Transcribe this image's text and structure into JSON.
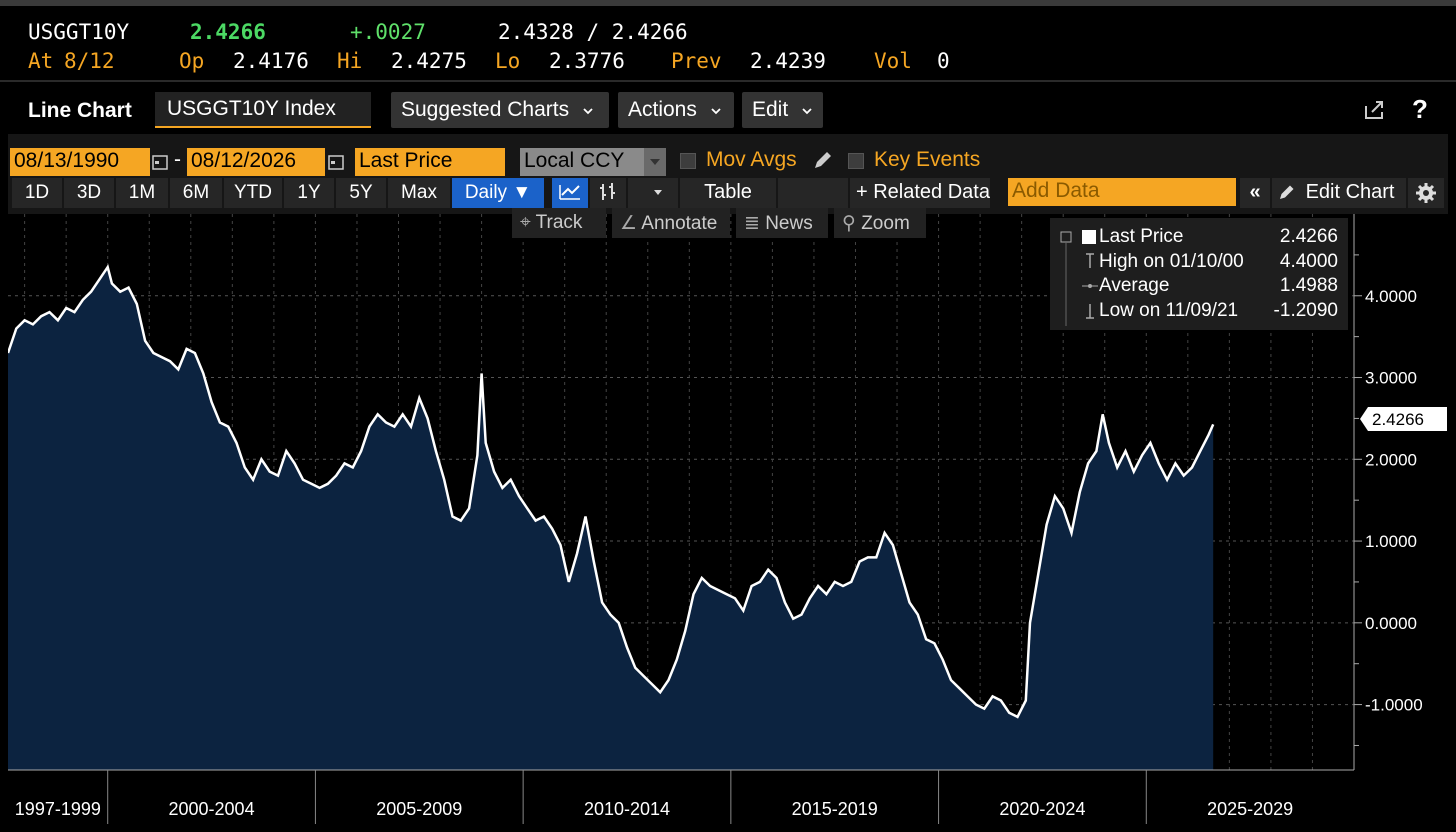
{
  "quote": {
    "ticker": "USGGT10Y",
    "last": "2.4266",
    "change": "+.0027",
    "bid_ask": "2.4328 / 2.4266",
    "at_label": "At",
    "at_date": "8/12",
    "open_label": "Op",
    "open": "2.4176",
    "high_label": "Hi",
    "high": "2.4275",
    "low_label": "Lo",
    "low": "2.3776",
    "prev_label": "Prev",
    "prev": "2.4239",
    "vol_label": "Vol",
    "vol": "0"
  },
  "toolbar": {
    "chart_type": "Line Chart",
    "security": "USGGT10Y Index",
    "suggested": "Suggested Charts",
    "actions": "Actions",
    "edit": "Edit",
    "export_icon": "export-icon",
    "help": "?"
  },
  "controls": {
    "start_date": "08/13/1990",
    "dash": "-",
    "end_date": "08/12/2026",
    "field": "Last Price",
    "currency": "Local CCY",
    "mov_avgs": "Mov Avgs",
    "key_events": "Key Events",
    "ranges": [
      "1D",
      "3D",
      "1M",
      "6M",
      "YTD",
      "1Y",
      "5Y",
      "Max"
    ],
    "frequency": "Daily ▼",
    "table": "Table",
    "related": "+ Related Data",
    "add_data": "Add Data",
    "collapse": "«",
    "edit_chart": "Edit Chart"
  },
  "chart_tools": {
    "track": "Track",
    "annotate": "Annotate",
    "news": "News",
    "zoom": "Zoom"
  },
  "legend": {
    "last_label": "Last Price",
    "last_value": "2.4266",
    "high_label": "High on 01/10/00",
    "high_value": "4.4000",
    "avg_label": "Average",
    "avg_value": "1.4988",
    "low_label": "Low on 11/09/21",
    "low_value": "-1.2090"
  },
  "last_tag": "2.4266",
  "colors": {
    "accent_orange": "#f5a623",
    "area_fill": "#0c2340",
    "line": "#ffffff",
    "active_blue": "#1b62c9",
    "change_green": "#4cd964"
  },
  "chart_data": {
    "type": "area",
    "series_name": "Last Price",
    "ylim": [
      -1.8,
      5.0
    ],
    "yticks": [
      "4.0000",
      "3.0000",
      "2.0000",
      "1.0000",
      "0.0000",
      "-1.0000"
    ],
    "ytick_values": [
      4,
      3,
      2,
      1,
      0,
      -1
    ],
    "x_periods": [
      "1997-1999",
      "2000-2004",
      "2005-2009",
      "2010-2014",
      "2015-2019",
      "2020-2024",
      "2025-2029"
    ],
    "x_period_starts": [
      1997,
      2000,
      2005,
      2010,
      2015,
      2020,
      2025
    ],
    "xlim": [
      1997.6,
      2030
    ],
    "grid": true,
    "legend_position": "top-right",
    "points": [
      [
        1997.6,
        3.3
      ],
      [
        1997.8,
        3.6
      ],
      [
        1998.0,
        3.7
      ],
      [
        1998.2,
        3.65
      ],
      [
        1998.4,
        3.75
      ],
      [
        1998.6,
        3.8
      ],
      [
        1998.8,
        3.7
      ],
      [
        1999.0,
        3.85
      ],
      [
        1999.2,
        3.8
      ],
      [
        1999.4,
        3.95
      ],
      [
        1999.6,
        4.05
      ],
      [
        1999.8,
        4.2
      ],
      [
        2000.0,
        4.35
      ],
      [
        2000.1,
        4.15
      ],
      [
        2000.3,
        4.05
      ],
      [
        2000.5,
        4.1
      ],
      [
        2000.7,
        3.9
      ],
      [
        2000.9,
        3.45
      ],
      [
        2001.1,
        3.3
      ],
      [
        2001.3,
        3.25
      ],
      [
        2001.5,
        3.2
      ],
      [
        2001.7,
        3.1
      ],
      [
        2001.9,
        3.35
      ],
      [
        2002.1,
        3.3
      ],
      [
        2002.3,
        3.05
      ],
      [
        2002.5,
        2.7
      ],
      [
        2002.7,
        2.45
      ],
      [
        2002.9,
        2.4
      ],
      [
        2003.1,
        2.2
      ],
      [
        2003.3,
        1.9
      ],
      [
        2003.5,
        1.75
      ],
      [
        2003.7,
        2.0
      ],
      [
        2003.9,
        1.85
      ],
      [
        2004.1,
        1.8
      ],
      [
        2004.3,
        2.1
      ],
      [
        2004.5,
        1.95
      ],
      [
        2004.7,
        1.75
      ],
      [
        2004.9,
        1.7
      ],
      [
        2005.1,
        1.65
      ],
      [
        2005.3,
        1.7
      ],
      [
        2005.5,
        1.8
      ],
      [
        2005.7,
        1.95
      ],
      [
        2005.9,
        1.9
      ],
      [
        2006.1,
        2.1
      ],
      [
        2006.3,
        2.4
      ],
      [
        2006.5,
        2.55
      ],
      [
        2006.7,
        2.45
      ],
      [
        2006.9,
        2.4
      ],
      [
        2007.1,
        2.55
      ],
      [
        2007.3,
        2.4
      ],
      [
        2007.5,
        2.75
      ],
      [
        2007.7,
        2.5
      ],
      [
        2007.9,
        2.1
      ],
      [
        2008.1,
        1.75
      ],
      [
        2008.3,
        1.3
      ],
      [
        2008.5,
        1.25
      ],
      [
        2008.7,
        1.4
      ],
      [
        2008.9,
        2.05
      ],
      [
        2009.0,
        3.05
      ],
      [
        2009.1,
        2.2
      ],
      [
        2009.3,
        1.85
      ],
      [
        2009.5,
        1.65
      ],
      [
        2009.7,
        1.75
      ],
      [
        2009.9,
        1.55
      ],
      [
        2010.1,
        1.4
      ],
      [
        2010.3,
        1.25
      ],
      [
        2010.5,
        1.3
      ],
      [
        2010.7,
        1.15
      ],
      [
        2010.9,
        0.95
      ],
      [
        2011.1,
        0.5
      ],
      [
        2011.3,
        0.85
      ],
      [
        2011.5,
        1.3
      ],
      [
        2011.7,
        0.75
      ],
      [
        2011.9,
        0.25
      ],
      [
        2012.1,
        0.1
      ],
      [
        2012.3,
        0.0
      ],
      [
        2012.5,
        -0.3
      ],
      [
        2012.7,
        -0.55
      ],
      [
        2012.9,
        -0.65
      ],
      [
        2013.1,
        -0.75
      ],
      [
        2013.3,
        -0.85
      ],
      [
        2013.5,
        -0.7
      ],
      [
        2013.7,
        -0.45
      ],
      [
        2013.9,
        -0.1
      ],
      [
        2014.1,
        0.35
      ],
      [
        2014.3,
        0.55
      ],
      [
        2014.5,
        0.45
      ],
      [
        2014.7,
        0.4
      ],
      [
        2014.9,
        0.35
      ],
      [
        2015.1,
        0.3
      ],
      [
        2015.3,
        0.15
      ],
      [
        2015.5,
        0.45
      ],
      [
        2015.7,
        0.5
      ],
      [
        2015.9,
        0.65
      ],
      [
        2016.1,
        0.55
      ],
      [
        2016.3,
        0.25
      ],
      [
        2016.5,
        0.05
      ],
      [
        2016.7,
        0.1
      ],
      [
        2016.9,
        0.3
      ],
      [
        2017.1,
        0.45
      ],
      [
        2017.3,
        0.35
      ],
      [
        2017.5,
        0.5
      ],
      [
        2017.7,
        0.45
      ],
      [
        2017.9,
        0.5
      ],
      [
        2018.1,
        0.75
      ],
      [
        2018.3,
        0.8
      ],
      [
        2018.5,
        0.8
      ],
      [
        2018.7,
        1.1
      ],
      [
        2018.9,
        0.95
      ],
      [
        2019.1,
        0.6
      ],
      [
        2019.3,
        0.25
      ],
      [
        2019.5,
        0.1
      ],
      [
        2019.7,
        -0.2
      ],
      [
        2019.9,
        -0.25
      ],
      [
        2020.1,
        -0.45
      ],
      [
        2020.3,
        -0.7
      ],
      [
        2020.5,
        -0.8
      ],
      [
        2020.7,
        -0.9
      ],
      [
        2020.9,
        -1.0
      ],
      [
        2021.1,
        -1.05
      ],
      [
        2021.3,
        -0.9
      ],
      [
        2021.5,
        -0.95
      ],
      [
        2021.7,
        -1.1
      ],
      [
        2021.9,
        -1.15
      ],
      [
        2022.1,
        -0.95
      ],
      [
        2022.2,
        0.0
      ],
      [
        2022.4,
        0.6
      ],
      [
        2022.6,
        1.2
      ],
      [
        2022.8,
        1.55
      ],
      [
        2023.0,
        1.4
      ],
      [
        2023.2,
        1.1
      ],
      [
        2023.4,
        1.6
      ],
      [
        2023.6,
        1.95
      ],
      [
        2023.8,
        2.1
      ],
      [
        2023.95,
        2.55
      ],
      [
        2024.1,
        2.2
      ],
      [
        2024.3,
        1.9
      ],
      [
        2024.5,
        2.1
      ],
      [
        2024.7,
        1.85
      ],
      [
        2024.9,
        2.05
      ],
      [
        2025.1,
        2.2
      ],
      [
        2025.3,
        1.95
      ],
      [
        2025.5,
        1.75
      ],
      [
        2025.7,
        1.95
      ],
      [
        2025.9,
        1.8
      ],
      [
        2026.1,
        1.9
      ],
      [
        2026.3,
        2.1
      ],
      [
        2026.5,
        2.3
      ],
      [
        2026.61,
        2.4266
      ]
    ]
  }
}
